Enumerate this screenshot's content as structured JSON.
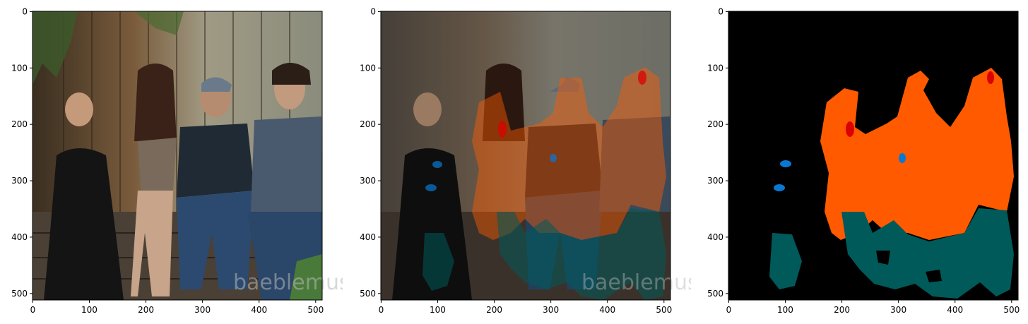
{
  "panels": [
    {
      "id": "photo",
      "x_ticks": [
        "0",
        "100",
        "200",
        "300",
        "400",
        "500"
      ],
      "y_ticks": [
        "0",
        "100",
        "200",
        "300",
        "400",
        "500"
      ]
    },
    {
      "id": "overlay",
      "x_ticks": [
        "0",
        "100",
        "200",
        "300",
        "400",
        "500"
      ],
      "y_ticks": [
        "0",
        "100",
        "200",
        "300",
        "400",
        "500"
      ]
    },
    {
      "id": "mask",
      "x_ticks": [
        "0",
        "100",
        "200",
        "300",
        "400",
        "500"
      ],
      "y_ticks": [
        "0",
        "100",
        "200",
        "300",
        "400",
        "500"
      ]
    }
  ],
  "axis": {
    "xlim": [
      0,
      511
    ],
    "ylim": [
      511,
      0
    ]
  },
  "watermark": "baeblemusic",
  "colors": {
    "background_mask": "#000000",
    "class_orange": "#ff5a00",
    "class_teal": "#005a5a",
    "class_blue": "#0a78d2",
    "class_red": "#dc0000",
    "fence_light": "#9a9078",
    "fence_dark": "#3a2e20"
  }
}
